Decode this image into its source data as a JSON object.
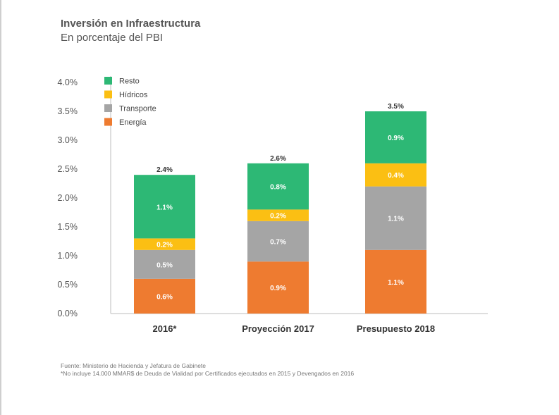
{
  "header": {
    "title": "Inversión en Infraestructura",
    "subtitle": "En porcentaje del PBI"
  },
  "chart_data": {
    "type": "bar",
    "stacked": true,
    "categories": [
      "2016*",
      "Proyección 2017",
      "Presupuesto 2018"
    ],
    "series": [
      {
        "name": "Energía",
        "color": "#ee7b30",
        "values": [
          0.6,
          0.9,
          1.1
        ],
        "labels": [
          "0.6%",
          "0.9%",
          "1.1%"
        ]
      },
      {
        "name": "Transporte",
        "color": "#a5a5a5",
        "values": [
          0.5,
          0.7,
          1.1
        ],
        "labels": [
          "0.5%",
          "0.7%",
          "1.1%"
        ]
      },
      {
        "name": "Hídricos",
        "color": "#fbbf13",
        "values": [
          0.2,
          0.2,
          0.4
        ],
        "labels": [
          "0.2%",
          "0.2%",
          "0.4%"
        ]
      },
      {
        "name": "Resto",
        "color": "#2db875",
        "values": [
          1.1,
          0.8,
          0.9
        ],
        "labels": [
          "1.1%",
          "0.8%",
          "0.9%"
        ]
      }
    ],
    "totals": [
      2.4,
      2.6,
      3.5
    ],
    "total_labels": [
      "2.4%",
      "2.6%",
      "3.5%"
    ],
    "ylim": [
      0,
      4.0
    ],
    "yticks": [
      "0.0%",
      "0.5%",
      "1.0%",
      "1.5%",
      "2.0%",
      "2.5%",
      "3.0%",
      "3.5%",
      "4.0%"
    ],
    "legend_order": [
      "Resto",
      "Hídricos",
      "Transporte",
      "Energía"
    ],
    "legend_position": "top-left",
    "grid": false
  },
  "footnotes": {
    "source": "Fuente: Ministerio de Hacienda y Jefatura de Gabinete",
    "note": "*No incluye 14.000 MMAR$ de Deuda de Vialidad por Certificados ejecutados en 2015 y Devengados en 2016"
  }
}
